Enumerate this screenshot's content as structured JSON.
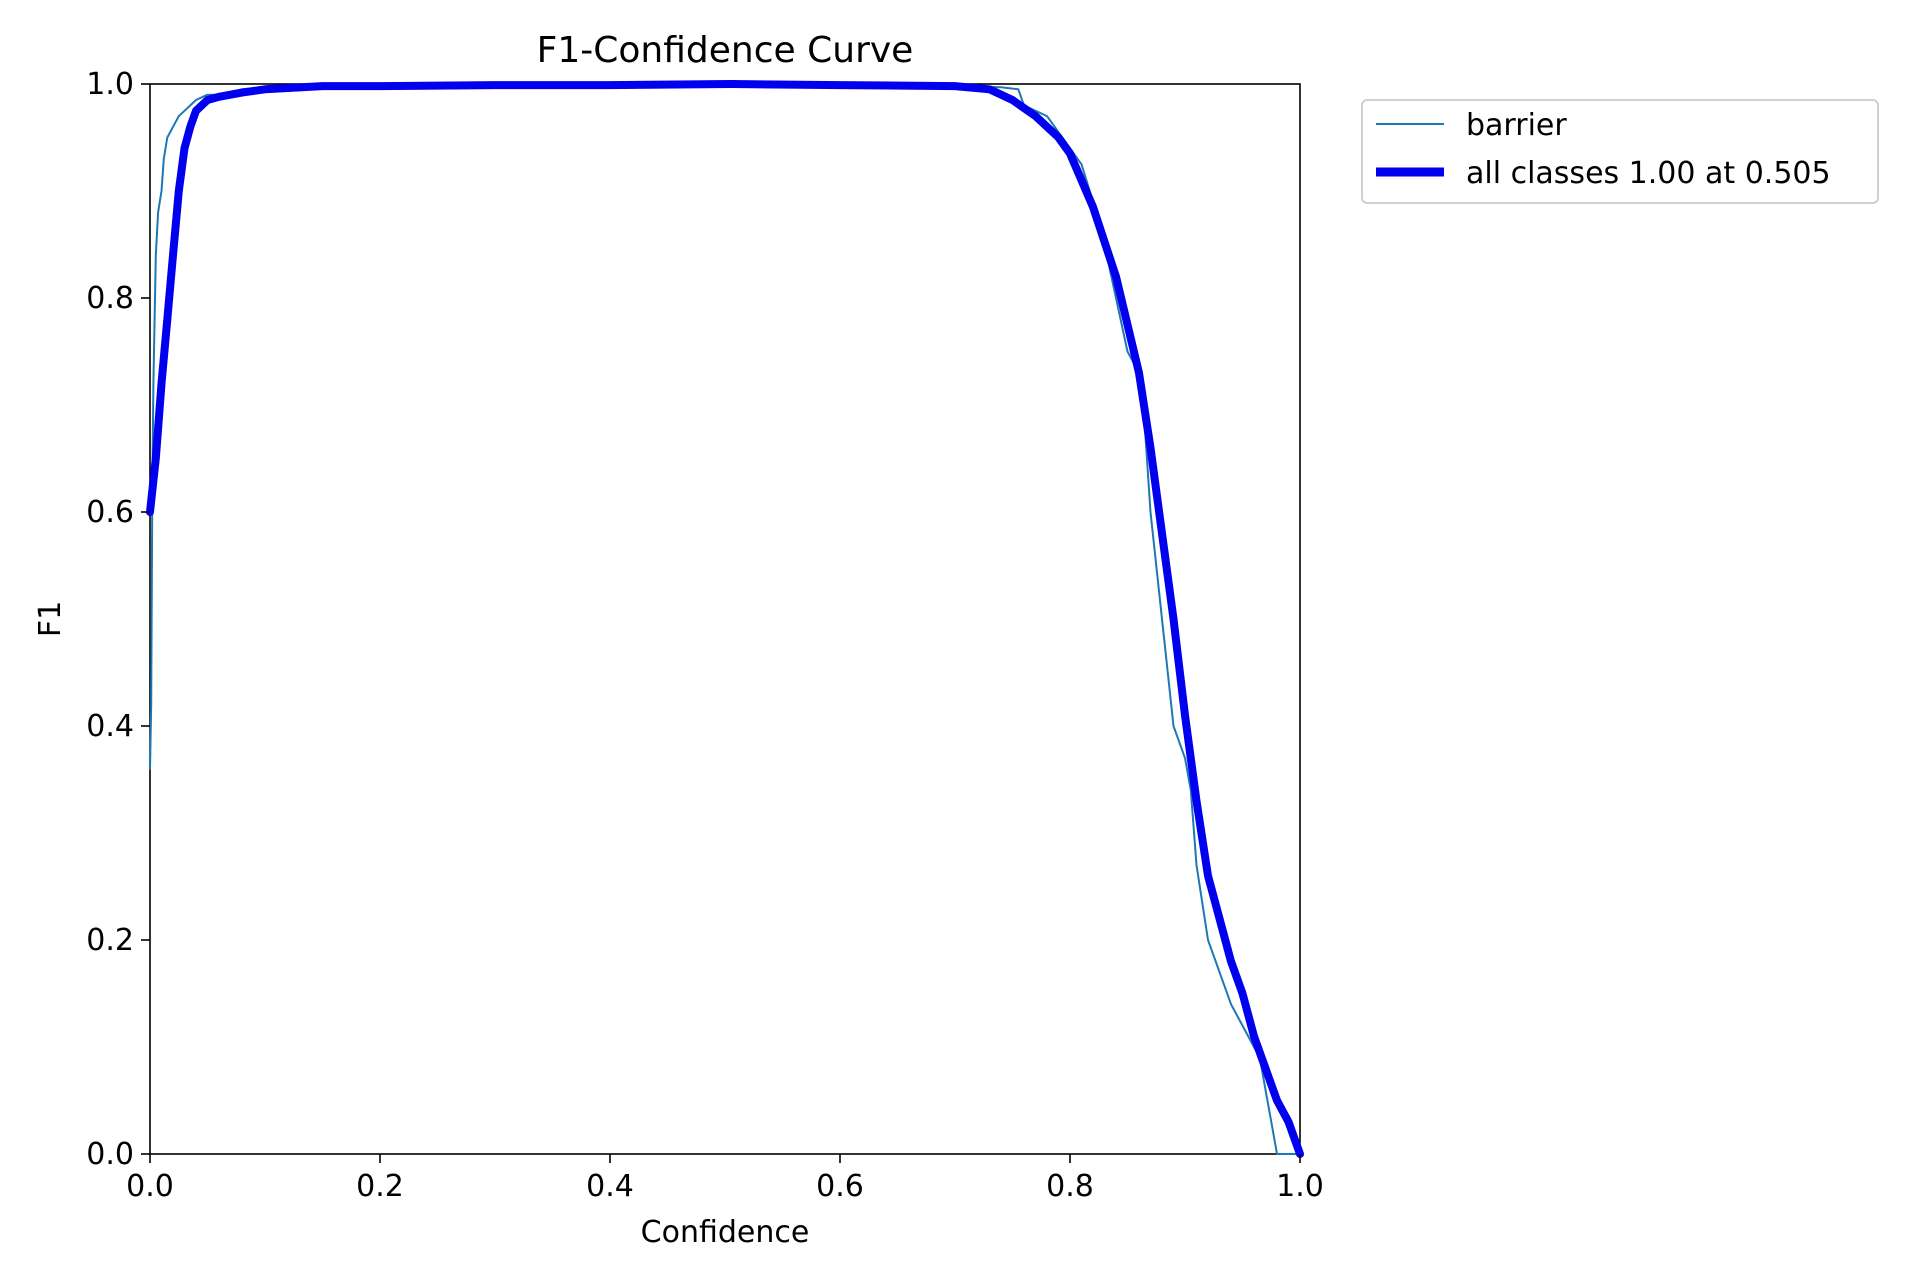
{
  "chart_data": {
    "type": "line",
    "title": "F1-Confidence Curve",
    "xlabel": "Confidence",
    "ylabel": "F1",
    "xlim": [
      0.0,
      1.0
    ],
    "ylim": [
      0.0,
      1.0
    ],
    "xticks": [
      0.0,
      0.2,
      0.4,
      0.6,
      0.8,
      1.0
    ],
    "xtick_labels": [
      "0.0",
      "0.2",
      "0.4",
      "0.6",
      "0.8",
      "1.0"
    ],
    "yticks": [
      0.0,
      0.2,
      0.4,
      0.6,
      0.8,
      1.0
    ],
    "ytick_labels": [
      "0.0",
      "0.2",
      "0.4",
      "0.6",
      "0.8",
      "1.0"
    ],
    "grid": false,
    "legend_position": "outside-upper-right",
    "series": [
      {
        "name": "barrier",
        "color": "#1f77b4",
        "style": "thin",
        "x": [
          0.0,
          0.001,
          0.002,
          0.003,
          0.005,
          0.007,
          0.01,
          0.012,
          0.015,
          0.02,
          0.025,
          0.03,
          0.035,
          0.04,
          0.05,
          0.06,
          0.08,
          0.1,
          0.15,
          0.2,
          0.3,
          0.4,
          0.5,
          0.6,
          0.7,
          0.74,
          0.755,
          0.76,
          0.78,
          0.8,
          0.81,
          0.82,
          0.83,
          0.84,
          0.85,
          0.86,
          0.865,
          0.87,
          0.88,
          0.89,
          0.9,
          0.905,
          0.91,
          0.92,
          0.93,
          0.94,
          0.95,
          0.96,
          0.965,
          0.97,
          0.975,
          0.98,
          0.981,
          0.982,
          0.985,
          0.99,
          1.0
        ],
        "y": [
          0.36,
          0.42,
          0.62,
          0.72,
          0.84,
          0.88,
          0.9,
          0.93,
          0.95,
          0.96,
          0.97,
          0.975,
          0.98,
          0.985,
          0.99,
          0.99,
          0.995,
          0.997,
          0.998,
          0.998,
          0.999,
          0.999,
          1.0,
          0.999,
          0.998,
          0.997,
          0.995,
          0.98,
          0.97,
          0.94,
          0.925,
          0.89,
          0.85,
          0.8,
          0.75,
          0.73,
          0.68,
          0.6,
          0.5,
          0.4,
          0.37,
          0.34,
          0.27,
          0.2,
          0.17,
          0.14,
          0.12,
          0.1,
          0.09,
          0.06,
          0.03,
          0.0,
          0.0,
          0.0,
          0.0,
          0.0,
          0.0
        ]
      },
      {
        "name": "all classes 1.00 at 0.505",
        "color": "#0000ee",
        "style": "thick",
        "x": [
          0.0,
          0.005,
          0.01,
          0.015,
          0.02,
          0.025,
          0.03,
          0.035,
          0.04,
          0.05,
          0.06,
          0.08,
          0.1,
          0.15,
          0.2,
          0.3,
          0.4,
          0.505,
          0.6,
          0.7,
          0.73,
          0.75,
          0.77,
          0.79,
          0.8,
          0.82,
          0.84,
          0.86,
          0.87,
          0.88,
          0.89,
          0.9,
          0.91,
          0.92,
          0.93,
          0.94,
          0.95,
          0.96,
          0.97,
          0.98,
          0.99,
          1.0
        ],
        "y": [
          0.6,
          0.65,
          0.72,
          0.78,
          0.84,
          0.9,
          0.94,
          0.96,
          0.975,
          0.985,
          0.988,
          0.992,
          0.995,
          0.998,
          0.998,
          0.999,
          0.999,
          1.0,
          0.999,
          0.998,
          0.995,
          0.985,
          0.97,
          0.95,
          0.935,
          0.885,
          0.82,
          0.73,
          0.66,
          0.58,
          0.5,
          0.41,
          0.33,
          0.26,
          0.22,
          0.18,
          0.15,
          0.11,
          0.08,
          0.05,
          0.03,
          0.0
        ]
      }
    ]
  }
}
